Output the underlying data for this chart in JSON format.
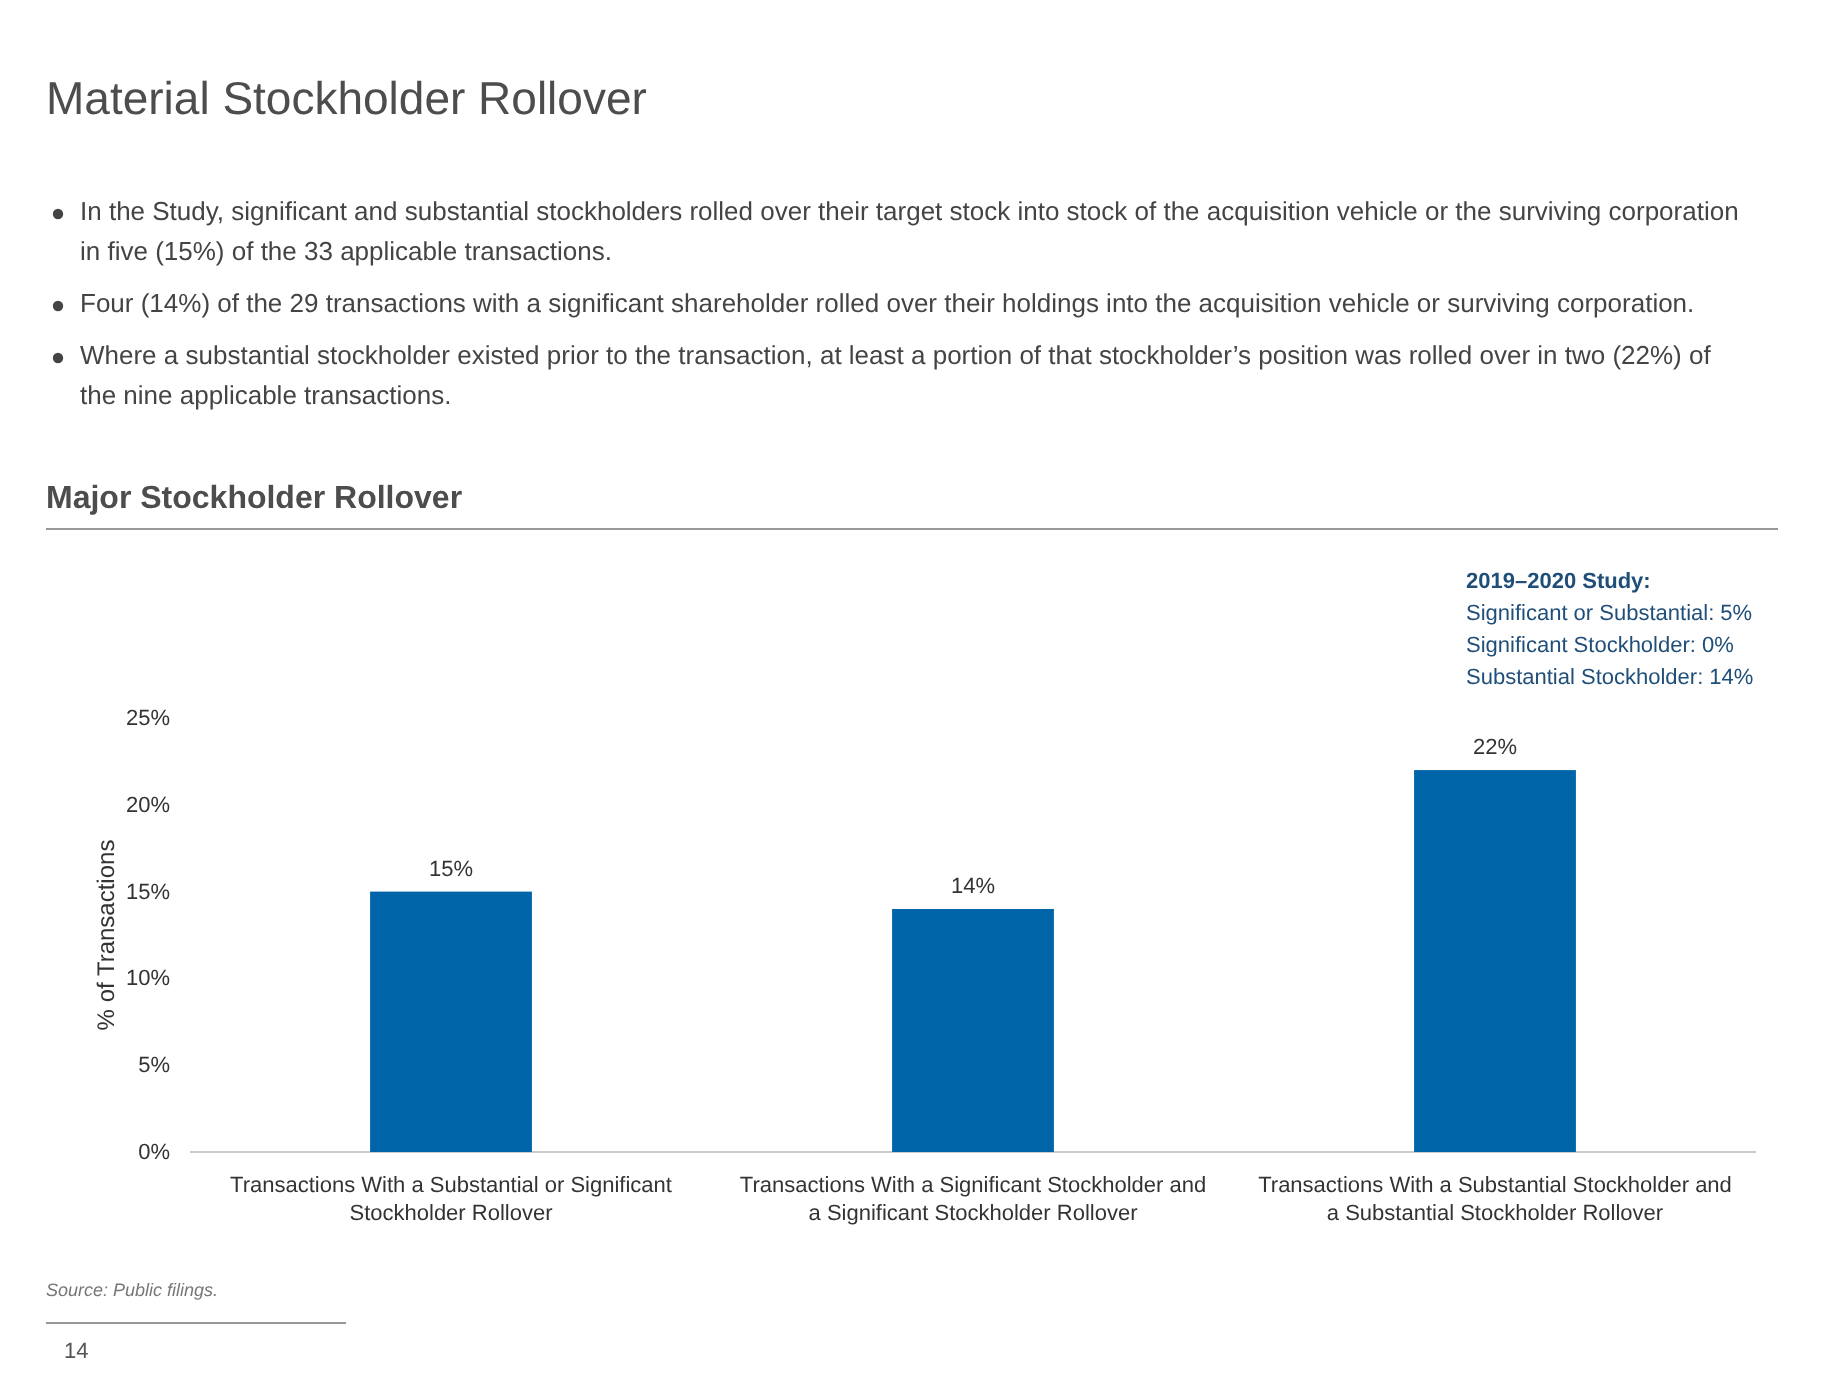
{
  "chart_data": {
    "type": "bar",
    "title": "Material Stockholder Rollover",
    "subtitle": "Major Stockholder Rollover",
    "ylabel": "% of Transactions",
    "categories": [
      "Transactions With a Substantial or Significant Stockholder Rollover",
      "Transactions With a Significant Stockholder and a Significant Stockholder Rollover",
      "Transactions With a Substantial Stockholder and a Substantial Stockholder Rollover"
    ],
    "values": [
      15,
      14,
      22
    ],
    "color": "#0064a8",
    "value_labels": [
      "15%",
      "14%",
      "22%"
    ],
    "ylim": [
      0,
      25
    ],
    "yticks": [
      {
        "value": 0,
        "label": "0%"
      },
      {
        "value": 5,
        "label": "5%"
      },
      {
        "value": 10,
        "label": "10%"
      },
      {
        "value": 15,
        "label": "15%"
      },
      {
        "value": 20,
        "label": "20%"
      },
      {
        "value": 25,
        "label": "25%"
      }
    ],
    "grid": false,
    "annotations": [
      "In the Study, significant and substantial stockholders rolled over their target stock into stock of the acquisition vehicle or the surviving corporation in five (15%) of the 33 applicable transactions.",
      "Four (14%) of the 29 transactions with a significant shareholder rolled over their holdings into the acquisition vehicle or surviving corporation.",
      "Where a substantial stockholder existed prior to the transaction, at least a portion of that stockholder’s position was rolled over in two (22%) of the nine applicable transactions.",
      "2019–2020 Study:",
      "Significant or Substantial: 5%",
      "Significant Stockholder: 0%",
      "Substantial Stockholder: 14%",
      "Source: Public filings.",
      "14"
    ]
  }
}
